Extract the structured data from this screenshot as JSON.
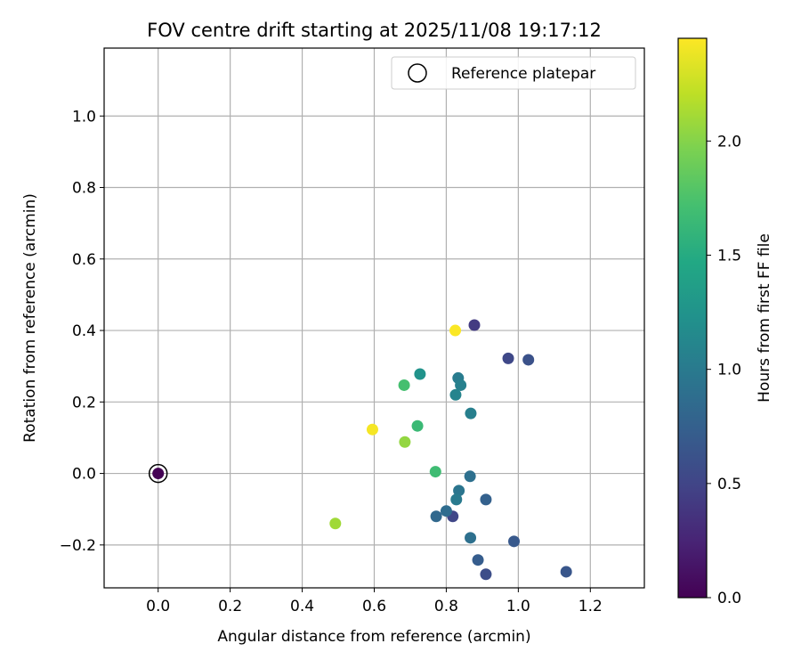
{
  "chart_data": {
    "type": "scatter",
    "title": "FOV centre drift starting at 2025/11/08 19:17:12",
    "xlabel": "Angular distance from reference (arcmin)",
    "ylabel": "Rotation from reference (arcmin)",
    "xlim": [
      -0.15,
      1.35
    ],
    "ylim": [
      -0.32,
      1.19
    ],
    "xticks": [
      0.0,
      0.2,
      0.4,
      0.6,
      0.8,
      1.0,
      1.2
    ],
    "xtick_labels": [
      "0.0",
      "0.2",
      "0.4",
      "0.6",
      "0.8",
      "1.0",
      "1.2"
    ],
    "yticks": [
      -0.2,
      0.0,
      0.2,
      0.4,
      0.6,
      0.8,
      1.0
    ],
    "ytick_labels": [
      "−0.2",
      "0.0",
      "0.2",
      "0.4",
      "0.6",
      "0.8",
      "1.0"
    ],
    "grid": true,
    "legend": {
      "position": "top-right",
      "label": "Reference platepar"
    },
    "reference_point": {
      "x": 0.0,
      "y": 0.0,
      "hours": 0.0
    },
    "colorbar": {
      "label": "Hours from first FF file",
      "range": [
        0.0,
        2.45
      ],
      "ticks": [
        0.0,
        0.5,
        1.0,
        1.5,
        2.0
      ],
      "tick_labels": [
        "0.0",
        "0.5",
        "1.0",
        "1.5",
        "2.0"
      ],
      "colormap": "viridis"
    },
    "points": [
      {
        "x": 0.878,
        "y": 0.415,
        "hours": 0.42
      },
      {
        "x": 0.972,
        "y": 0.322,
        "hours": 0.53
      },
      {
        "x": 1.028,
        "y": 0.318,
        "hours": 0.62
      },
      {
        "x": 1.133,
        "y": -0.275,
        "hours": 0.65
      },
      {
        "x": 0.988,
        "y": -0.19,
        "hours": 0.68
      },
      {
        "x": 0.91,
        "y": -0.282,
        "hours": 0.58
      },
      {
        "x": 0.888,
        "y": -0.242,
        "hours": 0.72
      },
      {
        "x": 0.818,
        "y": -0.12,
        "hours": 0.52
      },
      {
        "x": 0.772,
        "y": -0.12,
        "hours": 0.82
      },
      {
        "x": 0.8,
        "y": -0.105,
        "hours": 0.86
      },
      {
        "x": 0.867,
        "y": -0.18,
        "hours": 0.9
      },
      {
        "x": 0.91,
        "y": -0.073,
        "hours": 0.75
      },
      {
        "x": 0.835,
        "y": -0.048,
        "hours": 0.95
      },
      {
        "x": 0.828,
        "y": -0.073,
        "hours": 1.0
      },
      {
        "x": 0.866,
        "y": -0.008,
        "hours": 0.9
      },
      {
        "x": 0.868,
        "y": 0.168,
        "hours": 1.05
      },
      {
        "x": 0.833,
        "y": 0.267,
        "hours": 1.02
      },
      {
        "x": 0.84,
        "y": 0.247,
        "hours": 1.06
      },
      {
        "x": 0.826,
        "y": 0.22,
        "hours": 1.1
      },
      {
        "x": 0.727,
        "y": 0.278,
        "hours": 1.25
      },
      {
        "x": 0.72,
        "y": 0.133,
        "hours": 1.65
      },
      {
        "x": 0.683,
        "y": 0.247,
        "hours": 1.72
      },
      {
        "x": 0.77,
        "y": 0.005,
        "hours": 1.68
      },
      {
        "x": 0.685,
        "y": 0.088,
        "hours": 2.05
      },
      {
        "x": 0.492,
        "y": -0.14,
        "hours": 2.1
      },
      {
        "x": 0.595,
        "y": 0.123,
        "hours": 2.42
      },
      {
        "x": 0.825,
        "y": 0.4,
        "hours": 2.44
      }
    ]
  }
}
